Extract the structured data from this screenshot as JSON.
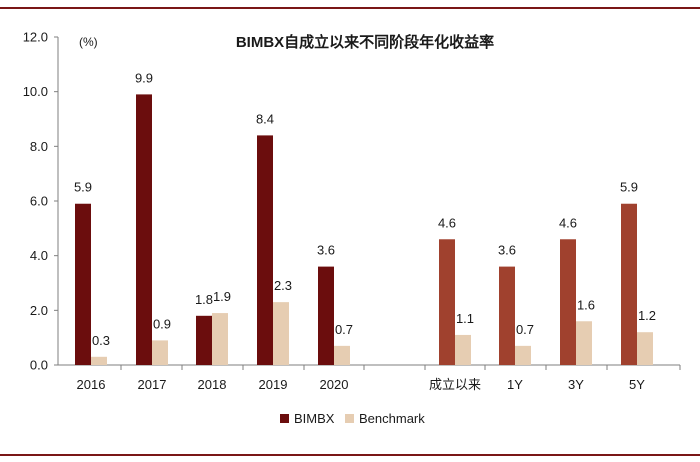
{
  "chart_data": {
    "type": "bar",
    "title": "BIMBX自成立以来不同阶段年化收益率",
    "unit_label": "(%)",
    "categories": [
      "2016",
      "2017",
      "2018",
      "2019",
      "2020",
      "成立以来",
      "1Y",
      "3Y",
      "5Y"
    ],
    "series": [
      {
        "name": "BIMBX",
        "values": [
          5.9,
          9.9,
          1.8,
          8.4,
          3.6,
          4.6,
          3.6,
          4.6,
          5.9
        ],
        "labels": [
          "5.9",
          "9.9",
          "1.8",
          "8.4",
          "3.6",
          "4.6",
          "3.6",
          "4.6",
          "5.9"
        ]
      },
      {
        "name": "Benchmark",
        "values": [
          0.3,
          0.9,
          1.9,
          2.3,
          0.7,
          1.1,
          0.7,
          1.6,
          1.2
        ],
        "labels": [
          "0.3",
          "0.9",
          "1.9",
          "2.3",
          "0.7",
          "1.1",
          "0.7",
          "1.6",
          "1.2"
        ]
      }
    ],
    "yticks": [
      "0.0",
      "2.0",
      "4.0",
      "6.0",
      "8.0",
      "10.0",
      "12.0"
    ],
    "ylim": [
      0,
      12
    ],
    "grid": false,
    "legend_position": "bottom",
    "colors": {
      "series1_years": "#6b0d0d",
      "series1_periods": "#a0412e",
      "series2": "#e6cdb2",
      "axis": "#7f7f7f",
      "rule": "#7a1616"
    }
  }
}
